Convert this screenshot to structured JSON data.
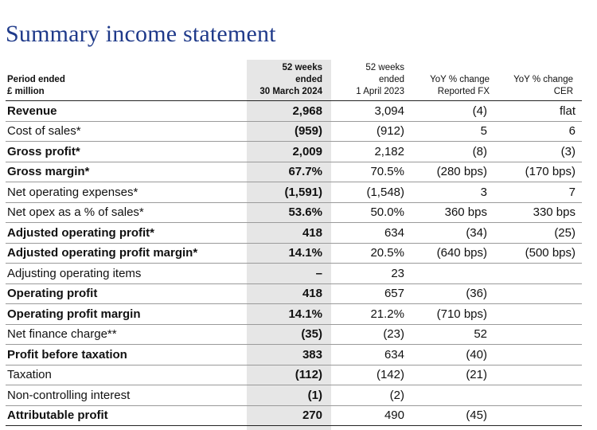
{
  "title": "Summary income statement",
  "header": {
    "label_line1": "Period ended",
    "label_line2": "£ million",
    "col1": [
      "52 weeks",
      "ended",
      "30 March 2024"
    ],
    "col2": [
      "52 weeks",
      "ended",
      "1 April 2023"
    ],
    "col3": [
      "YoY % change",
      "Reported FX"
    ],
    "col4": [
      "YoY % change",
      "CER"
    ]
  },
  "rows": [
    {
      "label": "Revenue",
      "bold": true,
      "v1": "2,968",
      "v2": "3,094",
      "v3": "(4)",
      "v4": "flat"
    },
    {
      "label": "Cost of sales*",
      "bold": false,
      "v1": "(959)",
      "v2": "(912)",
      "v3": "5",
      "v4": "6"
    },
    {
      "label": "Gross profit*",
      "bold": true,
      "v1": "2,009",
      "v2": "2,182",
      "v3": "(8)",
      "v4": "(3)"
    },
    {
      "label": "Gross margin*",
      "bold": true,
      "v1": "67.7%",
      "v2": "70.5%",
      "v3": "(280 bps)",
      "v4": "(170 bps)"
    },
    {
      "label": "Net operating expenses*",
      "bold": false,
      "v1": "(1,591)",
      "v2": "(1,548)",
      "v3": "3",
      "v4": "7"
    },
    {
      "label": "Net opex as a % of sales*",
      "bold": false,
      "v1": "53.6%",
      "v2": "50.0%",
      "v3": "360 bps",
      "v4": "330 bps"
    },
    {
      "label": "Adjusted operating profit*",
      "bold": true,
      "v1": "418",
      "v2": "634",
      "v3": "(34)",
      "v4": "(25)"
    },
    {
      "label": "Adjusted operating profit margin*",
      "bold": true,
      "v1": "14.1%",
      "v2": "20.5%",
      "v3": "(640 bps)",
      "v4": "(500 bps)"
    },
    {
      "label": "Adjusting operating items",
      "bold": false,
      "v1": "–",
      "v2": "23",
      "v3": "",
      "v4": ""
    },
    {
      "label": "Operating profit",
      "bold": true,
      "v1": "418",
      "v2": "657",
      "v3": "(36)",
      "v4": ""
    },
    {
      "label": "Operating profit margin",
      "bold": true,
      "v1": "14.1%",
      "v2": "21.2%",
      "v3": "(710 bps)",
      "v4": ""
    },
    {
      "label": "Net finance charge**",
      "bold": false,
      "v1": "(35)",
      "v2": "(23)",
      "v3": "52",
      "v4": ""
    },
    {
      "label": "Profit before taxation",
      "bold": true,
      "v1": "383",
      "v2": "634",
      "v3": "(40)",
      "v4": ""
    },
    {
      "label": "Taxation",
      "bold": false,
      "v1": "(112)",
      "v2": "(142)",
      "v3": "(21)",
      "v4": ""
    },
    {
      "label": "Non-controlling interest",
      "bold": false,
      "v1": "(1)",
      "v2": "(2)",
      "v3": "",
      "v4": ""
    },
    {
      "label": "Attributable profit",
      "bold": true,
      "v1": "270",
      "v2": "490",
      "v3": "(45)",
      "v4": ""
    }
  ]
}
